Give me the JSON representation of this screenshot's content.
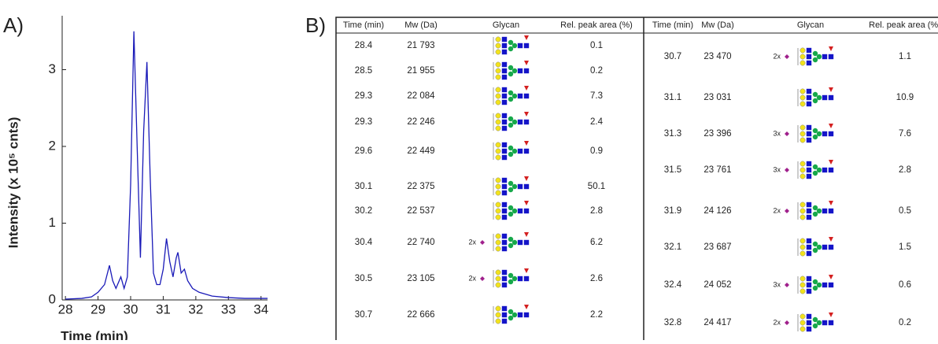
{
  "panel_labels": [
    "A)",
    "B)"
  ],
  "chart_data": {
    "type": "line",
    "ylabel": "Intensity (x 10⁵ cnts)",
    "xlabel": "Time (min)",
    "x": [
      28,
      28.5,
      28.8,
      29.0,
      29.2,
      29.35,
      29.45,
      29.55,
      29.7,
      29.8,
      29.9,
      30.0,
      30.1,
      30.2,
      30.3,
      30.4,
      30.5,
      30.6,
      30.7,
      30.8,
      30.9,
      31.0,
      31.1,
      31.2,
      31.3,
      31.4,
      31.45,
      31.55,
      31.65,
      31.75,
      31.9,
      32.1,
      32.5,
      33.0,
      33.5,
      34.2
    ],
    "series": [
      {
        "color": "#1a1ab8",
        "values": [
          0.01,
          0.02,
          0.04,
          0.1,
          0.2,
          0.45,
          0.25,
          0.15,
          0.3,
          0.15,
          0.3,
          1.5,
          3.5,
          2.0,
          0.55,
          2.2,
          3.1,
          1.6,
          0.35,
          0.2,
          0.2,
          0.4,
          0.8,
          0.5,
          0.3,
          0.55,
          0.62,
          0.35,
          0.4,
          0.25,
          0.15,
          0.1,
          0.05,
          0.03,
          0.02,
          0.02
        ]
      }
    ],
    "xlim": [
      27.9,
      34.2
    ],
    "ylim": [
      0,
      3.6
    ],
    "xticks": [
      28,
      29,
      30,
      31,
      32,
      33,
      34
    ],
    "yticks": [
      0,
      1,
      2,
      3
    ]
  },
  "table": {
    "header": [
      "Time (min)",
      "Mw (Da)",
      "Glycan",
      "Rel. peak area (%)"
    ],
    "left_rows": [
      {
        "time": 28.4,
        "mw": "21 793",
        "area": 0.1
      },
      {
        "time": 28.5,
        "mw": "21 955",
        "area": 0.2
      },
      {
        "time": 29.3,
        "mw": "22 084",
        "area": 7.3
      },
      {
        "time": 29.3,
        "mw": "22 246",
        "area": 2.4
      },
      {
        "time": 29.6,
        "mw": "22 449",
        "area": 0.9
      },
      {
        "time": 30.1,
        "mw": "22 375",
        "area": 50.1
      },
      {
        "time": 30.2,
        "mw": "22 537",
        "area": 2.8
      },
      {
        "time": 30.4,
        "mw": "22 740",
        "note": "2x",
        "area": 6.2
      },
      {
        "time": 30.5,
        "mw": "23 105",
        "note": "2x",
        "area": 2.6
      },
      {
        "time": 30.7,
        "mw": "22 666",
        "area": 2.2
      }
    ],
    "right_rows": [
      {
        "time": 30.7,
        "mw": "23 470",
        "note": "2x",
        "area": 1.1
      },
      {
        "time": 31.1,
        "mw": "23 031",
        "area": 10.9
      },
      {
        "time": 31.3,
        "mw": "23 396",
        "note": "3x",
        "area": 7.6
      },
      {
        "time": 31.5,
        "mw": "23 761",
        "note": "3x",
        "area": 2.8
      },
      {
        "time": 31.9,
        "mw": "24 126",
        "note": "2x",
        "area": 0.5
      },
      {
        "time": 32.1,
        "mw": "23 687",
        "area": 1.5
      },
      {
        "time": 32.4,
        "mw": "24 052",
        "note": "3x",
        "area": 0.6
      },
      {
        "time": 32.8,
        "mw": "24 417",
        "note": "2x",
        "area": 0.2
      }
    ]
  }
}
